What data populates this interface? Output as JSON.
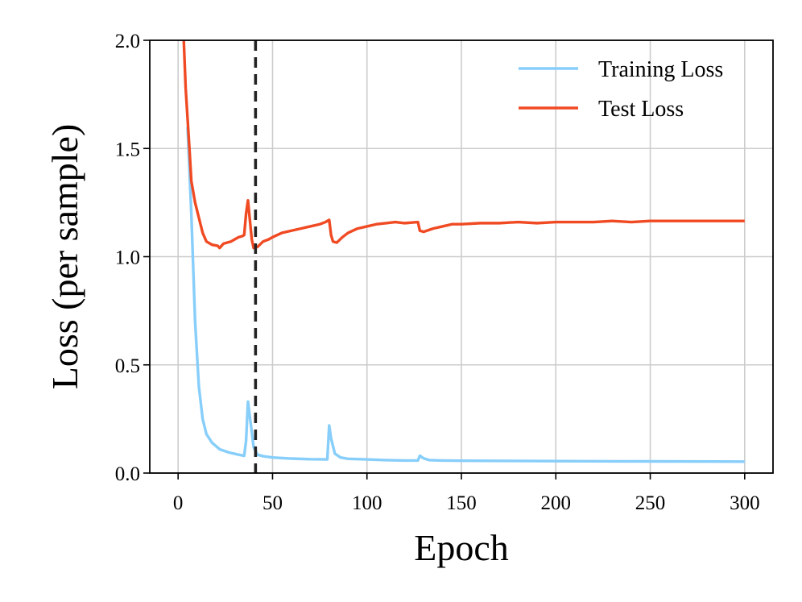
{
  "chart_data": {
    "type": "line",
    "xlabel": "Epoch",
    "ylabel": "Loss (per sample)",
    "xlim": [
      -15,
      315
    ],
    "ylim": [
      0.0,
      2.0
    ],
    "xticks": [
      0,
      50,
      100,
      150,
      200,
      250,
      300
    ],
    "yticks": [
      "0.0",
      "0.5",
      "1.0",
      "1.5",
      "2.0"
    ],
    "grid": true,
    "legend_position": "top-right",
    "vline": {
      "x": 41,
      "style": "dashed",
      "color": "#222222"
    },
    "series": [
      {
        "name": "Training Loss",
        "color": "#87CEFA",
        "points": [
          [
            5,
            1.6
          ],
          [
            7,
            1.2
          ],
          [
            9,
            0.7
          ],
          [
            11,
            0.4
          ],
          [
            13,
            0.25
          ],
          [
            15,
            0.18
          ],
          [
            18,
            0.14
          ],
          [
            22,
            0.11
          ],
          [
            27,
            0.095
          ],
          [
            32,
            0.085
          ],
          [
            35,
            0.08
          ],
          [
            36,
            0.15
          ],
          [
            37,
            0.33
          ],
          [
            38,
            0.26
          ],
          [
            40,
            0.12
          ],
          [
            42,
            0.085
          ],
          [
            45,
            0.078
          ],
          [
            50,
            0.072
          ],
          [
            60,
            0.067
          ],
          [
            70,
            0.064
          ],
          [
            79,
            0.063
          ],
          [
            80,
            0.22
          ],
          [
            81,
            0.16
          ],
          [
            83,
            0.09
          ],
          [
            86,
            0.072
          ],
          [
            90,
            0.066
          ],
          [
            100,
            0.063
          ],
          [
            110,
            0.06
          ],
          [
            120,
            0.058
          ],
          [
            127,
            0.058
          ],
          [
            128,
            0.08
          ],
          [
            130,
            0.068
          ],
          [
            133,
            0.06
          ],
          [
            140,
            0.058
          ],
          [
            150,
            0.057
          ],
          [
            175,
            0.056
          ],
          [
            200,
            0.055
          ],
          [
            250,
            0.054
          ],
          [
            300,
            0.053
          ]
        ]
      },
      {
        "name": "Test Loss",
        "color": "#F04A23",
        "points": [
          [
            3,
            2.0
          ],
          [
            4,
            1.78
          ],
          [
            6,
            1.5
          ],
          [
            7,
            1.35
          ],
          [
            9,
            1.25
          ],
          [
            11,
            1.18
          ],
          [
            13,
            1.11
          ],
          [
            15,
            1.07
          ],
          [
            18,
            1.055
          ],
          [
            21,
            1.05
          ],
          [
            22,
            1.04
          ],
          [
            24,
            1.06
          ],
          [
            26,
            1.065
          ],
          [
            28,
            1.07
          ],
          [
            30,
            1.08
          ],
          [
            32,
            1.09
          ],
          [
            34,
            1.095
          ],
          [
            35,
            1.1
          ],
          [
            36,
            1.2
          ],
          [
            37,
            1.26
          ],
          [
            38,
            1.17
          ],
          [
            39,
            1.08
          ],
          [
            40,
            1.04
          ],
          [
            42,
            1.045
          ],
          [
            45,
            1.07
          ],
          [
            48,
            1.08
          ],
          [
            50,
            1.09
          ],
          [
            55,
            1.11
          ],
          [
            60,
            1.12
          ],
          [
            65,
            1.13
          ],
          [
            70,
            1.14
          ],
          [
            75,
            1.15
          ],
          [
            78,
            1.16
          ],
          [
            80,
            1.17
          ],
          [
            81,
            1.1
          ],
          [
            82,
            1.07
          ],
          [
            84,
            1.065
          ],
          [
            87,
            1.09
          ],
          [
            90,
            1.11
          ],
          [
            95,
            1.13
          ],
          [
            100,
            1.14
          ],
          [
            105,
            1.15
          ],
          [
            110,
            1.155
          ],
          [
            115,
            1.16
          ],
          [
            120,
            1.155
          ],
          [
            127,
            1.16
          ],
          [
            128,
            1.12
          ],
          [
            130,
            1.115
          ],
          [
            135,
            1.13
          ],
          [
            140,
            1.14
          ],
          [
            145,
            1.15
          ],
          [
            150,
            1.15
          ],
          [
            160,
            1.155
          ],
          [
            170,
            1.155
          ],
          [
            180,
            1.16
          ],
          [
            190,
            1.155
          ],
          [
            200,
            1.16
          ],
          [
            210,
            1.16
          ],
          [
            220,
            1.16
          ],
          [
            230,
            1.165
          ],
          [
            240,
            1.16
          ],
          [
            250,
            1.165
          ],
          [
            260,
            1.165
          ],
          [
            270,
            1.165
          ],
          [
            280,
            1.165
          ],
          [
            290,
            1.165
          ],
          [
            300,
            1.165
          ]
        ]
      }
    ]
  }
}
